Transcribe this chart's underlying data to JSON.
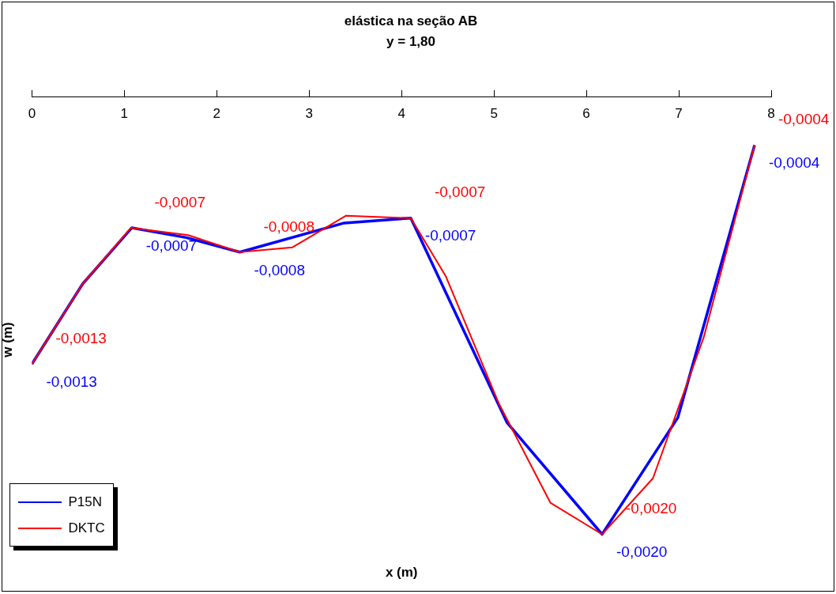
{
  "chart_data": {
    "type": "line",
    "title": "elástica na seção AB",
    "subtitle": "y = 1,80",
    "xlabel": "x (m)",
    "ylabel": "w (m)",
    "xlim": [
      0,
      8
    ],
    "xticks": [
      0,
      1,
      2,
      3,
      4,
      5,
      6,
      7,
      8
    ],
    "legend": "bottom left",
    "marker": "none",
    "line_style": "solid",
    "grid": false,
    "series": [
      {
        "name": "P15N",
        "color": "#0000ff",
        "x": [
          0,
          0.55,
          1.08,
          1.67,
          2.25,
          3.38,
          4.1,
          5.14,
          6.17,
          6.99,
          7.82
        ],
        "values": [
          -0.0013,
          -0.00097,
          -0.00074,
          -0.00078,
          -0.00084,
          -0.00072,
          -0.0007,
          -0.00154,
          -0.002,
          -0.00152,
          -0.0004
        ],
        "value_labels": [
          "-0,0013",
          null,
          "-0,0007",
          null,
          "-0,0008",
          null,
          "-0,0007",
          null,
          "-0,0020",
          null,
          "-0,0004"
        ]
      },
      {
        "name": "DKTC",
        "color": "#ff0000",
        "x": [
          0,
          0.55,
          1.07,
          1.69,
          2.25,
          2.82,
          3.4,
          4.1,
          4.48,
          5.05,
          5.61,
          6.17,
          6.72,
          7.27,
          7.82
        ],
        "values": [
          -0.0013,
          -0.00097,
          -0.00074,
          -0.00077,
          -0.00084,
          -0.00082,
          -0.00069,
          -0.0007,
          -0.00094,
          -0.00146,
          -0.00187,
          -0.002,
          -0.00177,
          -0.00119,
          -0.0004
        ],
        "value_labels": [
          "-0,0013",
          null,
          "-0,0007",
          null,
          "-0,0008",
          null,
          null,
          "-0,0007",
          null,
          null,
          null,
          "-0,0020",
          null,
          null,
          "-0,0004"
        ]
      }
    ]
  }
}
